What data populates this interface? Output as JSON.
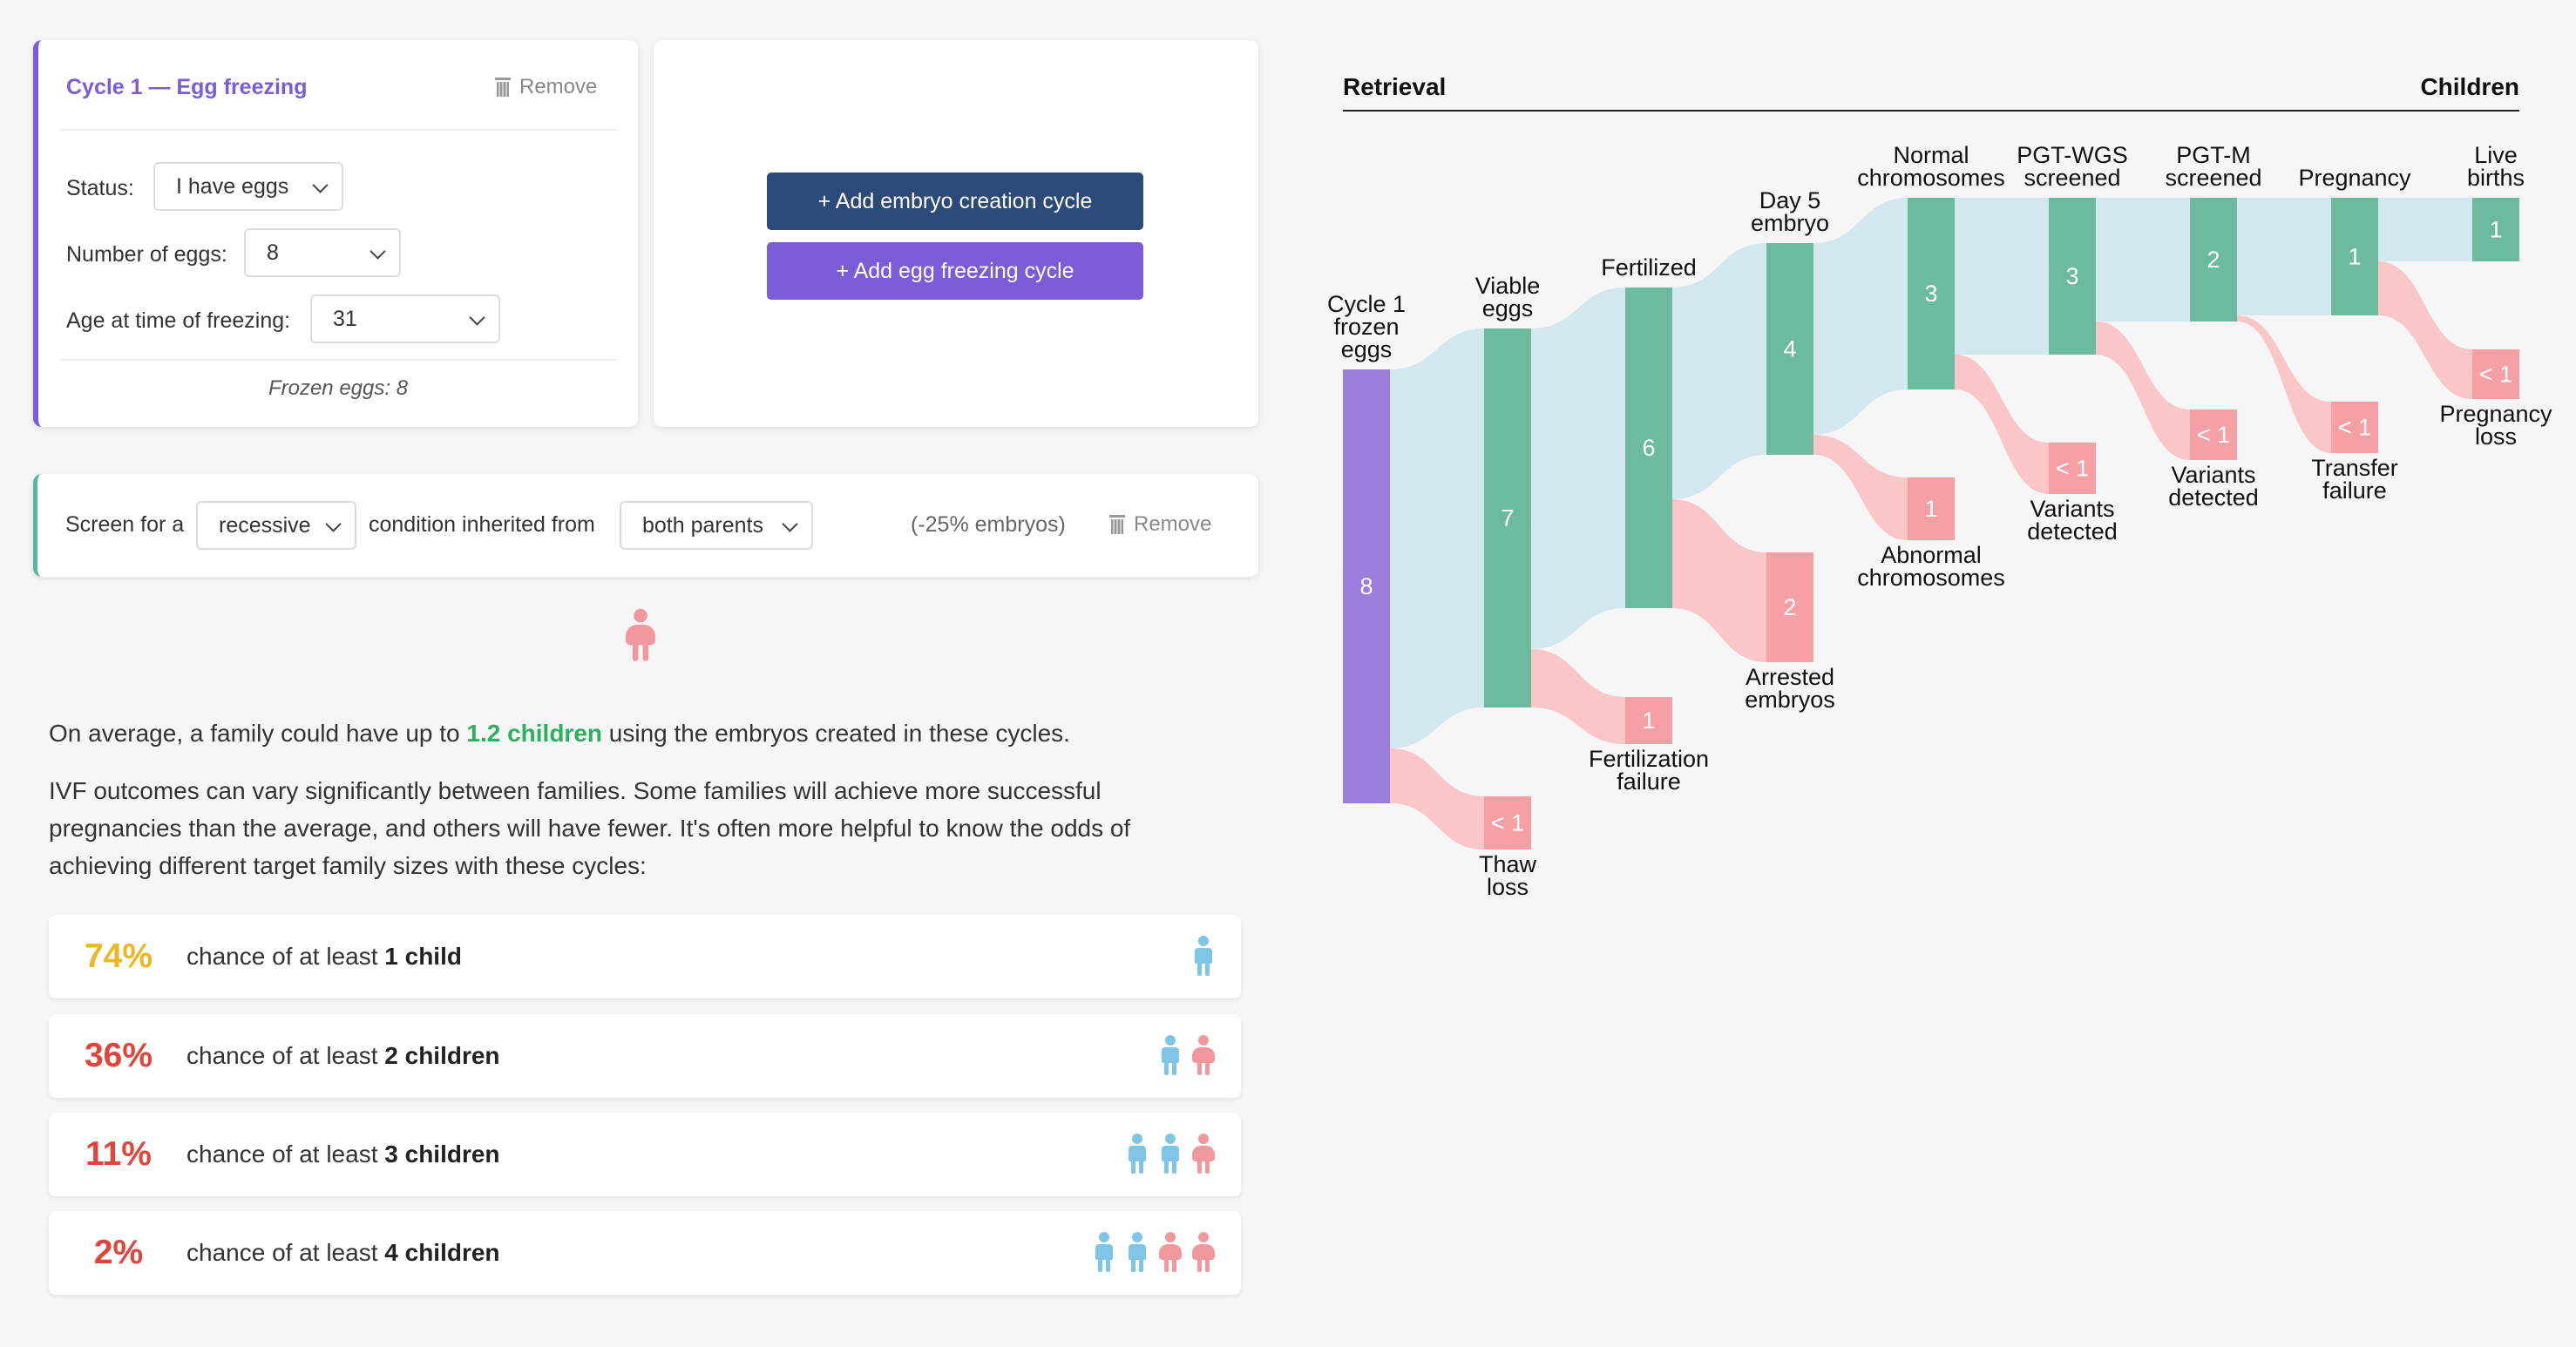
{
  "cycle": {
    "title": "Cycle 1 — Egg freezing",
    "remove_label": "Remove",
    "status_label": "Status:",
    "status_value": "I have eggs",
    "eggs_label": "Number of eggs:",
    "eggs_value": "8",
    "age_label": "Age at time of freezing:",
    "age_value": "31",
    "frozen_text": "Frozen eggs: 8"
  },
  "actions": {
    "add_embryo": "+ Add embryo creation cycle",
    "add_egg": "+ Add egg freezing cycle"
  },
  "screen": {
    "prefix": "Screen for a",
    "type_value": "recessive",
    "middle": "condition inherited from",
    "parents_value": "both parents",
    "effect": "(-25% embryos)",
    "remove_label": "Remove"
  },
  "summary": {
    "lead": "On average, a family could have up to ",
    "highlight": "1.2 children",
    "tail": " using the embryos created in these cycles.",
    "para2_line1": "IVF outcomes can vary significantly between families. Some families will achieve more successful",
    "para2_line2": "pregnancies than the average, and others will have fewer. It's often more helpful to know the odds of",
    "para2_line3": "achieving different target family sizes with these cycles:"
  },
  "odds": [
    {
      "pct": "74%",
      "color": "#e9b824",
      "text": "chance of at least ",
      "bold": "1 child"
    },
    {
      "pct": "36%",
      "color": "#e0443b",
      "text": "chance of at least ",
      "bold": "2 children"
    },
    {
      "pct": "11%",
      "color": "#e0443b",
      "text": "chance of at least ",
      "bold": "3 children"
    },
    {
      "pct": "2%",
      "color": "#e0443b",
      "text": "chance of at least ",
      "bold": "4 children"
    }
  ],
  "sankey": {
    "left_header": "Retrieval",
    "right_header": "Children",
    "colors": {
      "frozen": "#9b7ddb",
      "ok": "#6dbb9f",
      "loss": "#f5a0a4",
      "link_ok": "#d3e7ef",
      "link_loss": "#fbc6c8"
    },
    "stages": [
      {
        "label": [
          "Cycle 1",
          "frozen",
          "eggs"
        ],
        "value": "8"
      },
      {
        "label": [
          "Viable",
          "eggs"
        ],
        "value": "7",
        "loss_label": [
          "Thaw",
          "loss"
        ],
        "loss_value": "< 1"
      },
      {
        "label": [
          "Fertilized"
        ],
        "value": "6",
        "loss_label": [
          "Fertilization",
          "failure"
        ],
        "loss_value": "1"
      },
      {
        "label": [
          "Day 5",
          "embryo"
        ],
        "value": "4",
        "loss_label": [
          "Arrested",
          "embryos"
        ],
        "loss_value": "2"
      },
      {
        "label": [
          "Normal",
          "chromosomes"
        ],
        "value": "3",
        "loss_label": [
          "Abnormal",
          "chromosomes"
        ],
        "loss_value": "1"
      },
      {
        "label": [
          "PGT-WGS",
          "screened"
        ],
        "value": "3",
        "loss_label": [
          "Variants",
          "detected"
        ],
        "loss_value": "< 1"
      },
      {
        "label": [
          "PGT-M",
          "screened"
        ],
        "value": "2",
        "loss_label": [
          "Variants",
          "detected"
        ],
        "loss_value": "< 1"
      },
      {
        "label": [
          "Pregnancy"
        ],
        "value": "1",
        "loss_label": [
          "Transfer",
          "failure"
        ],
        "loss_value": "< 1"
      },
      {
        "label": [
          "Live",
          "births"
        ],
        "value": "1",
        "loss_label": [
          "Pregnancy",
          "loss"
        ],
        "loss_value": "< 1"
      }
    ]
  }
}
